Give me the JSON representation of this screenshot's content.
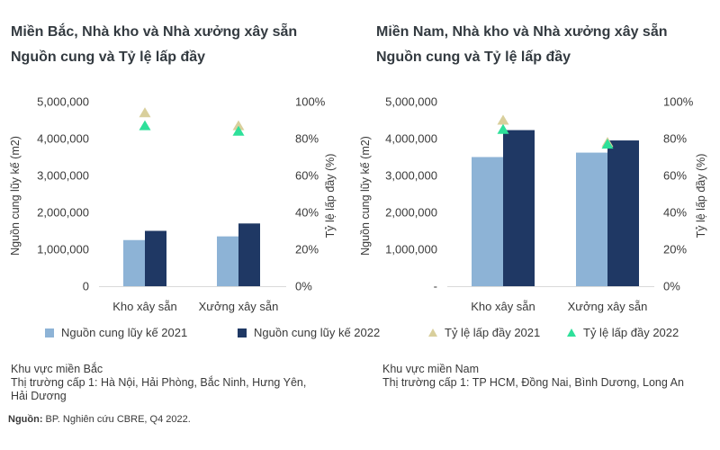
{
  "titles": {
    "left": [
      "Miền Bắc, Nhà kho và Nhà xưởng xây sẵn",
      "Nguồn cung và Tỷ lệ lấp đầy"
    ],
    "right": [
      "Miền Nam, Nhà kho và Nhà xưởng xây sẵn",
      "Nguồn cung và Tỷ lệ lấp đầy"
    ]
  },
  "legend": [
    {
      "label": "Nguồn cung lũy kế 2021",
      "color": "#8db3d6",
      "shape": "square"
    },
    {
      "label": "Nguồn cung lũy kế 2022",
      "color": "#1f3864",
      "shape": "square"
    },
    {
      "label": "Tỷ lệ lấp đầy 2021",
      "color": "#d9cf9c",
      "shape": "triangle"
    },
    {
      "label": "Tỷ lệ lấp đầy 2022",
      "color": "#2ee09a",
      "shape": "triangle"
    }
  ],
  "notes": {
    "left": [
      "Khu vực miền Bắc",
      "Thị trường cấp 1: Hà Nội, Hải Phòng, Bắc Ninh, Hưng Yên,",
      "Hải Dương"
    ],
    "right": [
      "Khu vực miền Nam",
      "Thị trường cấp 1: TP HCM, Đồng Nai, Bình Dương, Long An"
    ]
  },
  "source": {
    "bold": "Nguồn:",
    "text": " BP. Nghiên cứu CBRE, Q4 2022."
  },
  "chart_data": [
    {
      "type": "bar",
      "title": "Miền Bắc, Nhà kho và Nhà xưởng xây sẵn / Nguồn cung và Tỷ lệ lấp đầy",
      "categories": [
        "Kho xây sẵn",
        "Xưởng xây sẵn"
      ],
      "series": [
        {
          "name": "Nguồn cung lũy kế 2021",
          "values": [
            1250000,
            1350000
          ],
          "color": "#8db3d6",
          "axis": "left"
        },
        {
          "name": "Nguồn cung lũy kế 2022",
          "values": [
            1500000,
            1700000
          ],
          "color": "#1f3864",
          "axis": "left"
        },
        {
          "name": "Tỷ lệ lấp đầy 2021",
          "values": [
            94,
            87
          ],
          "color": "#d9cf9c",
          "axis": "right",
          "marker": "triangle"
        },
        {
          "name": "Tỷ lệ lấp đầy 2022",
          "values": [
            87,
            84
          ],
          "color": "#2ee09a",
          "axis": "right",
          "marker": "triangle"
        }
      ],
      "ylabel": "Nguồn cung lũy kế (m2)",
      "y2label": "Tỷ lệ lấp đầy (%)",
      "ylim": [
        0,
        5000000
      ],
      "y2lim": [
        0,
        100
      ],
      "yticks": [
        "0",
        "1,000,000",
        "2,000,000",
        "3,000,000",
        "4,000,000",
        "5,000,000"
      ],
      "y2ticks": [
        "0%",
        "20%",
        "40%",
        "60%",
        "80%",
        "100%"
      ],
      "grid": false
    },
    {
      "type": "bar",
      "title": "Miền Nam, Nhà kho và Nhà xưởng xây sẵn / Nguồn cung và Tỷ lệ lấp đầy",
      "categories": [
        "Kho xây sẵn",
        "Xưởng xây sẵn"
      ],
      "series": [
        {
          "name": "Nguồn cung lũy kế 2021",
          "values": [
            3500000,
            3620000
          ],
          "color": "#8db3d6",
          "axis": "left"
        },
        {
          "name": "Nguồn cung lũy kế 2022",
          "values": [
            4230000,
            3950000
          ],
          "color": "#1f3864",
          "axis": "left"
        },
        {
          "name": "Tỷ lệ lấp đầy 2021",
          "values": [
            90,
            78
          ],
          "color": "#d9cf9c",
          "axis": "right",
          "marker": "triangle"
        },
        {
          "name": "Tỷ lệ lấp đầy 2022",
          "values": [
            85,
            77
          ],
          "color": "#2ee09a",
          "axis": "right",
          "marker": "triangle"
        }
      ],
      "ylabel": "Nguồn cung lũy kế (m2)",
      "y2label": "Tỷ lệ lấp đầy (%)",
      "ylim": [
        0,
        5000000
      ],
      "y2lim": [
        0,
        100
      ],
      "yticks": [
        "-",
        "1,000,000",
        "2,000,000",
        "3,000,000",
        "4,000,000",
        "5,000,000"
      ],
      "y2ticks": [
        "0%",
        "20%",
        "40%",
        "60%",
        "80%",
        "100%"
      ],
      "grid": false
    }
  ]
}
